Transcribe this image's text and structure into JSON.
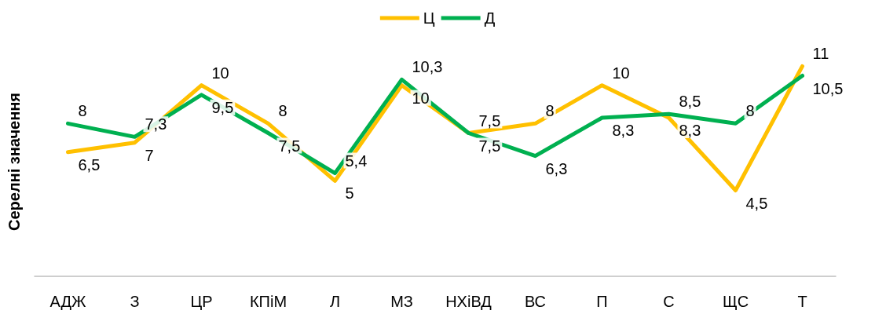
{
  "chart_data": {
    "type": "line",
    "ylabel": "Серелні значення",
    "categories": [
      "АДЖ",
      "З",
      "ЦР",
      "КПіМ",
      "Л",
      "МЗ",
      "НХіВД",
      "ВС",
      "П",
      "С",
      "ЩС",
      "Т"
    ],
    "series": [
      {
        "name": "Ц",
        "color": "#ffc000",
        "values": [
          6.5,
          7,
          10,
          8,
          5,
          10,
          7.5,
          8,
          10,
          8.3,
          4.5,
          11
        ],
        "value_labels": [
          "6,5",
          "7",
          "10",
          "8",
          "5",
          "10",
          "7,5",
          "8",
          "10",
          "8,3",
          "4,5",
          "11"
        ]
      },
      {
        "name": "Д",
        "color": "#00b050",
        "values": [
          8,
          7.3,
          9.5,
          7.5,
          5.4,
          10.3,
          7.5,
          6.3,
          8.3,
          8.5,
          8,
          10.5
        ],
        "value_labels": [
          "8",
          "7,3",
          "9,5",
          "7,5",
          "5,4",
          "10,3",
          "7,5",
          "6,3",
          "8,3",
          "8,5",
          "8",
          "10,5"
        ]
      }
    ],
    "tick_labels": "x",
    "legend": "top",
    "grid": false,
    "marker": "none",
    "line_style": "solid"
  }
}
